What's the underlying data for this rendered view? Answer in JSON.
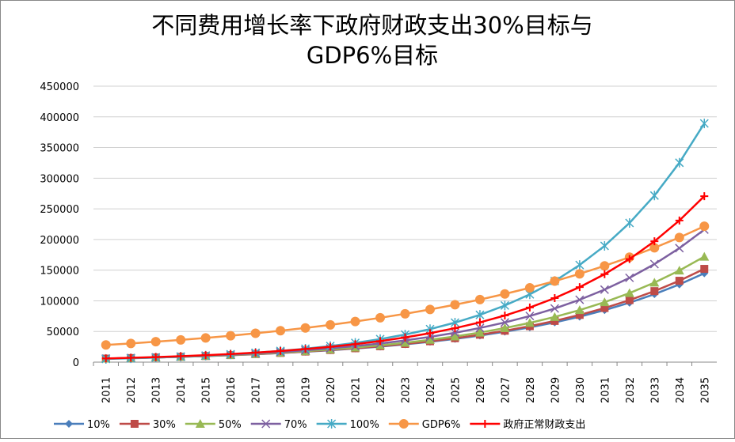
{
  "chart_data": {
    "type": "line",
    "title": [
      "不同费用增长率下政府财政支出30%目标与",
      "GDP6%目标"
    ],
    "categories": [
      "2011",
      "2012",
      "2013",
      "2014",
      "2015",
      "2016",
      "2017",
      "2018",
      "2019",
      "2020",
      "2021",
      "2022",
      "2023",
      "2024",
      "2025",
      "2026",
      "2027",
      "2028",
      "2029",
      "2030",
      "2031",
      "2032",
      "2033",
      "2034",
      "2035"
    ],
    "ylim": [
      0,
      450000
    ],
    "yticks": [
      0,
      50000,
      100000,
      150000,
      200000,
      250000,
      300000,
      350000,
      400000,
      450000
    ],
    "grid": true,
    "legend": "bottom",
    "series": [
      {
        "name": "10%",
        "color": "#4a7ebb",
        "marker": "diamond",
        "values": [
          5800,
          6632,
          7584,
          8673,
          9917,
          11340,
          12968,
          14829,
          16957,
          19390,
          22173,
          25355,
          28994,
          33155,
          37913,
          43354,
          49575,
          56689,
          64825,
          74128,
          84766,
          96930,
          110840,
          126746,
          144934
        ]
      },
      {
        "name": "30%",
        "color": "#be4b48",
        "marker": "square",
        "values": [
          5800,
          6646,
          7615,
          8725,
          9997,
          11455,
          13125,
          15039,
          17232,
          19744,
          22623,
          25921,
          29701,
          34031,
          38993,
          44679,
          51193,
          58657,
          67210,
          77010,
          88238,
          101104,
          115845,
          132736,
          152090
        ]
      },
      {
        "name": "50%",
        "color": "#98b954",
        "marker": "triangle",
        "values": [
          5800,
          6680,
          7693,
          8860,
          10204,
          11752,
          13535,
          15588,
          17953,
          20677,
          23814,
          27427,
          31588,
          36380,
          41899,
          48256,
          55577,
          64009,
          73720,
          84904,
          97785,
          112620,
          129706,
          149384,
          172046
        ]
      },
      {
        "name": "70%",
        "color": "#7d60a0",
        "marker": "x",
        "values": [
          5800,
          6744,
          7841,
          9117,
          10600,
          12325,
          14330,
          16662,
          19373,
          22525,
          26190,
          30451,
          35406,
          41167,
          47865,
          55653,
          64708,
          75236,
          87477,
          101710,
          118258,
          137499,
          159871,
          185882,
          216125
        ]
      },
      {
        "name": "100%",
        "color": "#46aac5",
        "marker": "star",
        "values": [
          5200,
          6224,
          7450,
          8918,
          10675,
          12778,
          15295,
          18308,
          21915,
          26232,
          31400,
          37586,
          44990,
          53853,
          64462,
          77161,
          92362,
          110557,
          132337,
          158407,
          189613,
          226967,
          271680,
          325201,
          389266
        ]
      },
      {
        "name": "GDP6%",
        "color": "#f79646",
        "marker": "circle",
        "values": [
          28000,
          30500,
          33300,
          36300,
          39500,
          43100,
          47000,
          51200,
          55800,
          60800,
          66300,
          72300,
          78800,
          85900,
          93600,
          102000,
          111200,
          121200,
          132100,
          144000,
          157000,
          171100,
          186500,
          203300,
          221600
        ]
      },
      {
        "name": "政府正常财政支出",
        "color": "#ff0000",
        "marker": "plus",
        "values": [
          6000,
          7032,
          8242,
          9659,
          11321,
          13268,
          15550,
          18225,
          21360,
          25034,
          29340,
          34386,
          40301,
          47233,
          55357,
          64878,
          76037,
          89116,
          104444,
          122408,
          143462,
          168138,
          197058,
          230952,
          270676
        ]
      }
    ]
  }
}
